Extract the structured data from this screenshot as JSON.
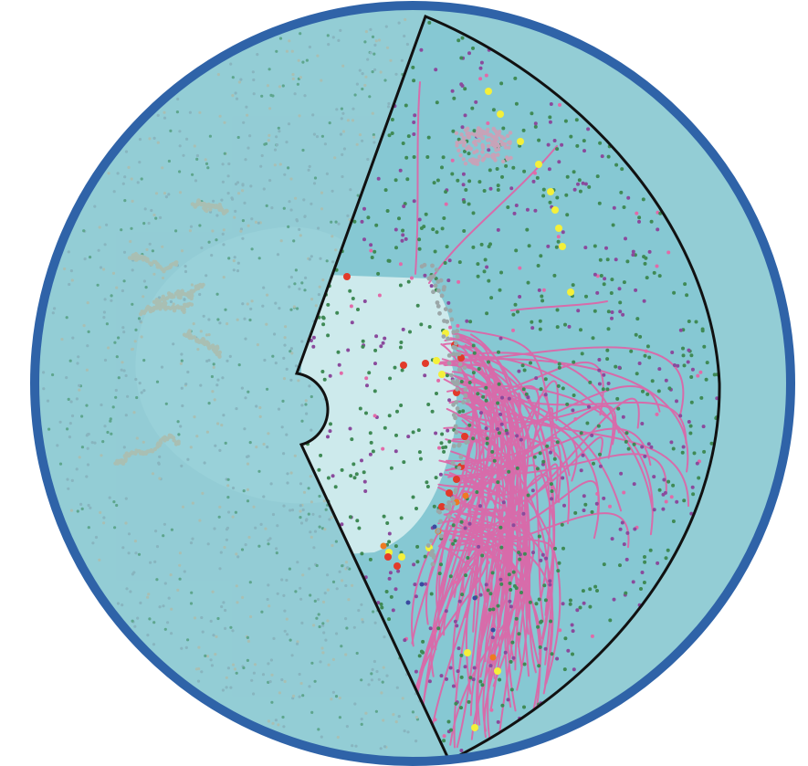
{
  "figure": {
    "kind": "circular-simulation-snapshot",
    "colors": {
      "page_background": "#ffffff",
      "outer_ring": "#2f63a8",
      "ocean": "#86c8d3",
      "ocean_dim": "#9fd1d7",
      "center_blob_faded": "#a9d9df",
      "center_blob": "#cdeaec",
      "wedge_outline": "#111111",
      "dot_green": "#3f8a55",
      "dot_purple": "#8a4a9c",
      "dot_pink": "#e26aa8",
      "dot_yellow": "#f4f03a",
      "dot_red": "#e23a2a",
      "dot_orange": "#ee7a22",
      "dot_blue": "#3a4aa0",
      "track_pink": "#e062a6",
      "dot_faded_gray": "#8aa7b0",
      "dot_faded_tan": "#c7b89a"
    }
  },
  "layers": [
    {
      "name": "outer-ring",
      "description": ""
    },
    {
      "name": "faded-background-region"
    },
    {
      "name": "highlighted-wedge-sector"
    },
    {
      "name": "particle-tracks"
    },
    {
      "name": "scatter-particles"
    }
  ]
}
